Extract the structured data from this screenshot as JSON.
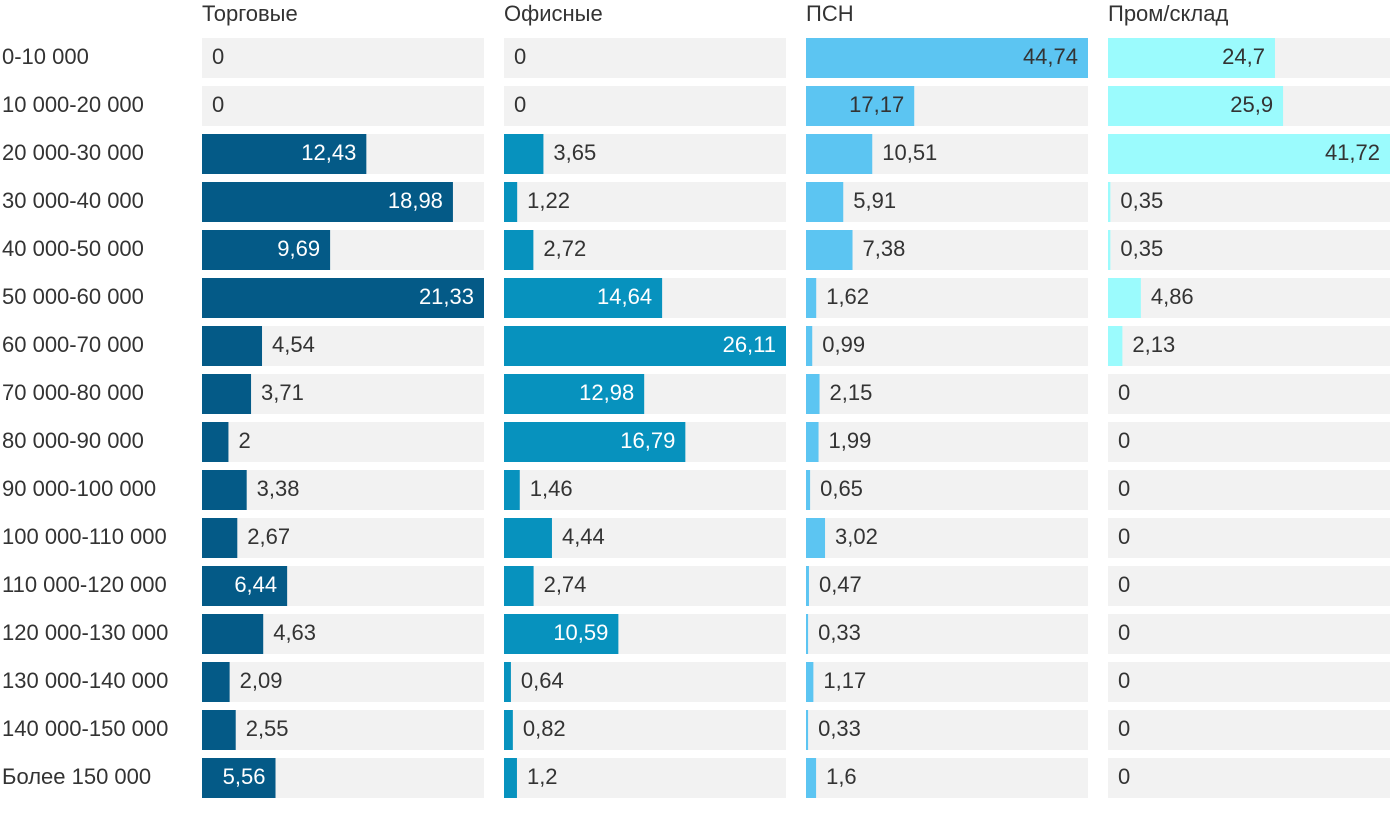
{
  "chart_data": {
    "type": "bar",
    "orientation": "horizontal",
    "track_color": "#f2f2f2",
    "categories": [
      "0-10 000",
      "10 000-20 000",
      "20 000-30 000",
      "30 000-40 000",
      "40 000-50 000",
      "50 000-60 000",
      "60 000-70 000",
      "70 000-80 000",
      "80 000-90 000",
      "90 000-100 000",
      "100 000-110 000",
      "110 000-120 000",
      "120 000-130 000",
      "130 000-140 000",
      "140 000-150 000",
      "Более 150 000"
    ],
    "series": [
      {
        "name": "Торговые",
        "color": "#045a87",
        "xlim": [
          0,
          21.33
        ],
        "values": [
          0,
          0,
          12.43,
          18.98,
          9.69,
          21.33,
          4.54,
          3.71,
          2,
          3.38,
          2.67,
          6.44,
          4.63,
          2.09,
          2.55,
          5.56
        ],
        "value_labels": [
          "0",
          "0",
          "12,43",
          "18,98",
          "9,69",
          "21,33",
          "4,54",
          "3,71",
          "2",
          "3,38",
          "2,67",
          "6,44",
          "4,63",
          "2,09",
          "2,55",
          "5,56"
        ]
      },
      {
        "name": "Офисные",
        "color": "#0792be",
        "xlim": [
          0,
          26.11
        ],
        "values": [
          0,
          0,
          3.65,
          1.22,
          2.72,
          14.64,
          26.11,
          12.98,
          16.79,
          1.46,
          4.44,
          2.74,
          10.59,
          0.64,
          0.82,
          1.2
        ],
        "value_labels": [
          "0",
          "0",
          "3,65",
          "1,22",
          "2,72",
          "14,64",
          "26,11",
          "12,98",
          "16,79",
          "1,46",
          "4,44",
          "2,74",
          "10,59",
          "0,64",
          "0,82",
          "1,2"
        ]
      },
      {
        "name": "ПСН",
        "color": "#5cc5f2",
        "xlim": [
          0,
          44.74
        ],
        "values": [
          44.74,
          17.17,
          10.51,
          5.91,
          7.38,
          1.62,
          0.99,
          2.15,
          1.99,
          0.65,
          3.02,
          0.47,
          0.33,
          1.17,
          0.33,
          1.6
        ],
        "value_labels": [
          "44,74",
          "17,17",
          "10,51",
          "5,91",
          "7,38",
          "1,62",
          "0,99",
          "2,15",
          "1,99",
          "0,65",
          "3,02",
          "0,47",
          "0,33",
          "1,17",
          "0,33",
          "1,6"
        ]
      },
      {
        "name": "Пром/склад",
        "color": "#9bfbfd",
        "xlim": [
          0,
          41.72
        ],
        "values": [
          24.7,
          25.9,
          41.72,
          0.35,
          0.35,
          4.86,
          2.13,
          0,
          0,
          0,
          0,
          0,
          0,
          0,
          0,
          0
        ],
        "value_labels": [
          "24,7",
          "25,9",
          "41,72",
          "0,35",
          "0,35",
          "4,86",
          "2,13",
          "0",
          "0",
          "0",
          "0",
          "0",
          "0",
          "0",
          "0",
          "0"
        ]
      }
    ]
  }
}
